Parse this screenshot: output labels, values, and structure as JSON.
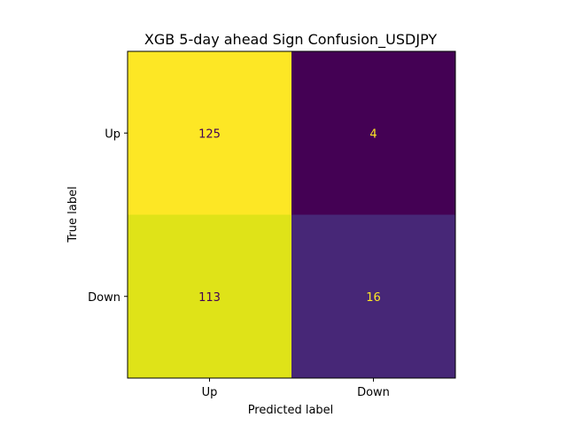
{
  "chart_data": {
    "type": "heatmap",
    "title": "XGB 5-day ahead Sign Confusion_USDJPY",
    "xlabel": "Predicted label",
    "ylabel": "True label",
    "x_categories": [
      "Up",
      "Down"
    ],
    "y_categories": [
      "Up",
      "Down"
    ],
    "values": [
      [
        125,
        4
      ],
      [
        113,
        16
      ]
    ],
    "colormap": "viridis",
    "grid": false,
    "legend": "none"
  }
}
